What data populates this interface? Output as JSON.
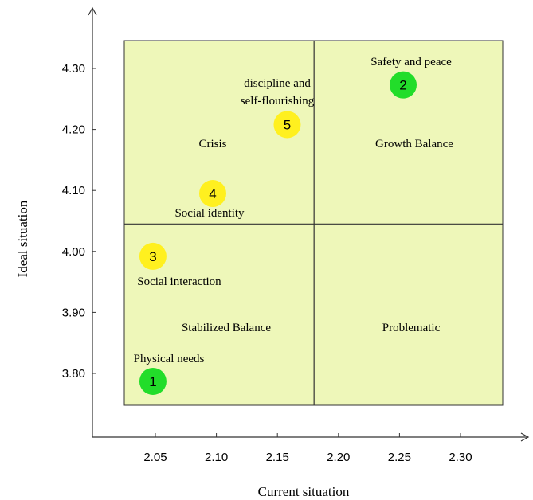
{
  "chart_data": {
    "type": "scatter",
    "xlabel": "Current situation",
    "ylabel": "Ideal situation",
    "xlim": [
      2.0,
      2.35
    ],
    "ylim": [
      3.7,
      4.35
    ],
    "xticks": [
      "2.05",
      "2.10",
      "2.15",
      "2.20",
      "2.25",
      "2.30"
    ],
    "yticks": [
      "3.80",
      "3.90",
      "4.00",
      "4.10",
      "4.20",
      "4.30"
    ],
    "grid": false,
    "plot_area_color": "#eef7b9",
    "divider_x": 2.18,
    "divider_y": 4.045,
    "quadrants": [
      {
        "label": "Crisis",
        "position": "top-left"
      },
      {
        "label": "Growth Balance",
        "position": "top-right"
      },
      {
        "label": "Stabilized Balance",
        "position": "bottom-left"
      },
      {
        "label": "Problematic",
        "position": "bottom-right"
      }
    ],
    "points": [
      {
        "number": "1",
        "label": "Physical needs",
        "x": 2.048,
        "y": 3.787,
        "color": "#22dd2a"
      },
      {
        "number": "2",
        "label": "Safety and peace",
        "x": 2.253,
        "y": 4.273,
        "color": "#22dd2a"
      },
      {
        "number": "3",
        "label": "Social interaction",
        "x": 2.048,
        "y": 3.992,
        "color": "#fff01f"
      },
      {
        "number": "4",
        "label": "Social identity",
        "x": 2.097,
        "y": 4.095,
        "color": "#fff01f"
      },
      {
        "number": "5",
        "label_lines": [
          "discipline and",
          "self-flourishing"
        ],
        "x": 2.158,
        "y": 4.208,
        "color": "#fff01f"
      }
    ]
  }
}
